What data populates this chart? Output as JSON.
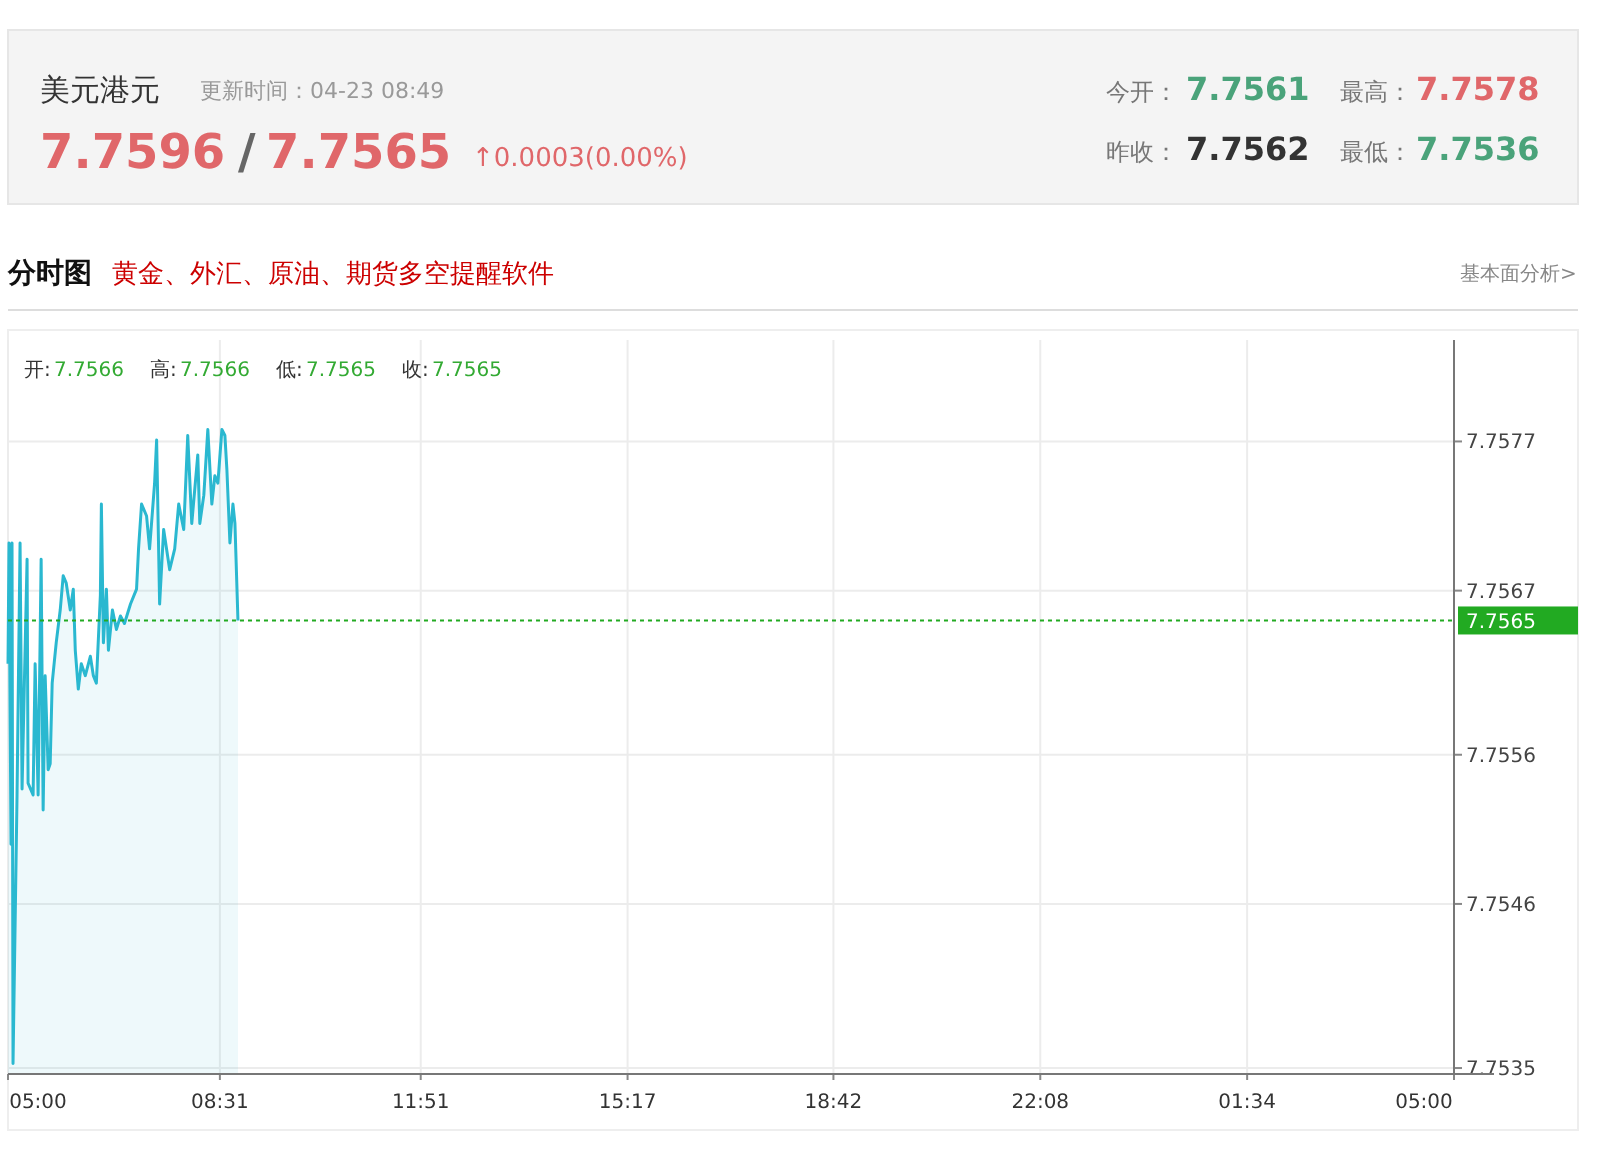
{
  "chart_data": {
    "type": "area",
    "title": "美元港元",
    "subtitle": "分时图",
    "annotations": [
      "更新时间：04-23 08:49",
      "7.7596",
      "/",
      "7.7565",
      "↑0.0003(0.00%)",
      "今开：",
      "7.7561",
      "最高：",
      "7.7578",
      "昨收：",
      "7.7562",
      "最低：",
      "7.7536",
      "黄金、外汇、原油、期货多空提醒软件",
      "基本面分析>",
      "开:",
      "7.7566",
      "高:",
      "7.7566",
      "低:",
      "7.7565",
      "收:",
      "7.7565"
    ],
    "x": [
      "--04-23T05:00",
      "--04-23T05:01",
      "--04-23T05:03",
      "--04-23T05:04",
      "--04-23T05:05",
      "--04-23T05:09",
      "--04-23T05:12",
      "--04-23T05:14",
      "--04-23T05:19",
      "--04-23T05:20",
      "--04-23T05:25",
      "--04-23T05:27",
      "--04-23T05:30",
      "--04-23T05:33",
      "--04-23T05:35",
      "--04-23T05:37",
      "--04-23T05:40",
      "--04-23T05:42",
      "--04-23T05:44",
      "--04-23T05:48",
      "--04-23T05:52",
      "--04-23T05:55",
      "--04-23T05:58",
      "--04-23T06:02",
      "--04-23T06:05",
      "--04-23T06:07",
      "--04-23T06:10",
      "--04-23T06:13",
      "--04-23T06:17",
      "--04-23T06:22",
      "--04-23T06:25",
      "--04-23T06:28",
      "--04-23T06:32",
      "--04-23T06:33",
      "--04-23T06:35",
      "--04-23T06:38",
      "--04-23T06:40",
      "--04-23T06:44",
      "--04-23T06:48",
      "--04-23T06:52",
      "--04-23T06:56",
      "--04-23T07:02",
      "--04-23T07:08",
      "--04-23T07:10",
      "--04-23T07:13",
      "--04-23T07:18",
      "--04-23T07:21",
      "--04-23T07:26",
      "--04-23T07:28",
      "--04-23T07:31",
      "--04-23T07:35",
      "--04-23T07:41",
      "--04-23T07:46",
      "--04-23T07:50",
      "--04-23T07:55",
      "--04-23T07:59",
      "--04-23T08:03",
      "--04-23T08:09",
      "--04-23T08:11",
      "--04-23T08:15",
      "--04-23T08:19",
      "--04-23T08:23",
      "--04-23T08:26",
      "--04-23T08:29",
      "--04-23T08:33",
      "--04-23T08:36",
      "--04-23T08:38",
      "--04-23T08:41",
      "--04-23T08:44",
      "--04-23T08:46",
      "--04-23T08:49"
    ],
    "series": [
      {
        "color": "#2ab8d0",
        "values": [
          7.75621,
          7.75702,
          7.755,
          7.75702,
          7.75353,
          7.75533,
          7.75702,
          7.75537,
          7.75691,
          7.75541,
          7.75533,
          7.75621,
          7.75533,
          7.75691,
          7.75523,
          7.75613,
          7.7555,
          7.75554,
          7.75608,
          7.75635,
          7.75657,
          7.7568,
          7.75675,
          7.75657,
          7.75671,
          7.7563,
          7.75604,
          7.75621,
          7.75613,
          7.75626,
          7.75613,
          7.75608,
          7.75667,
          7.75728,
          7.75635,
          7.75671,
          7.7563,
          7.75657,
          7.75644,
          7.75653,
          7.75648,
          7.75661,
          7.75671,
          7.75698,
          7.75728,
          7.7572,
          7.75698,
          7.75742,
          7.75771,
          7.75661,
          7.75711,
          7.75684,
          7.75698,
          7.75728,
          7.75711,
          7.75774,
          7.75715,
          7.75761,
          7.75715,
          7.75734,
          7.75778,
          7.75728,
          7.75747,
          7.75742,
          7.75778,
          7.75774,
          7.75751,
          7.75702,
          7.75728,
          7.75715,
          7.7565
        ]
      }
    ],
    "xlim": [
      "--04-23T05:00",
      "--04-24T05:00"
    ],
    "xticks": [
      {
        "value": "--04-23T05:00",
        "label": "05:00"
      },
      {
        "value": "--04-23T08:31",
        "label": "08:31"
      },
      {
        "value": "--04-23T11:51",
        "label": "11:51"
      },
      {
        "value": "--04-23T15:17",
        "label": "15:17"
      },
      {
        "value": "--04-23T18:42",
        "label": "18:42"
      },
      {
        "value": "--04-23T22:08",
        "label": "22:08"
      },
      {
        "value": "--04-24T01:34",
        "label": "01:34"
      },
      {
        "value": "--04-24T05:00",
        "label": "05:00"
      }
    ],
    "ylim": [
      7.75346,
      7.75838
    ],
    "yticks": [
      7.7577,
      7.7567,
      7.7556,
      7.7546,
      7.7535
    ],
    "ref_lines": [
      {
        "axis": "y",
        "value": 7.7565,
        "label": "7.7565",
        "color": "#22aa22",
        "line_style": "dotted"
      }
    ],
    "grid": true
  }
}
